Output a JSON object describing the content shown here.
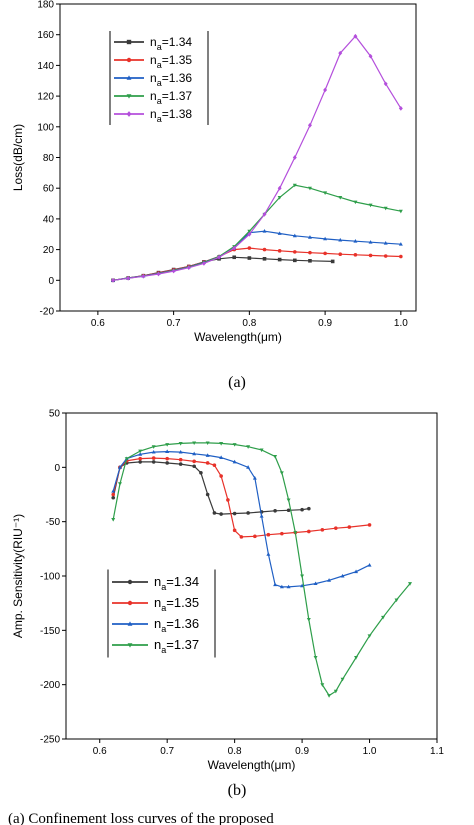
{
  "captions": {
    "a": "(a)",
    "b": "(b)"
  },
  "bottom_text": "(a) Confinement loss curves of the proposed",
  "chart_data": [
    {
      "type": "line",
      "xlabel": "Wavelength(μm)",
      "ylabel": "Loss(dB/cm)",
      "xlim": [
        0.55,
        1.02
      ],
      "ylim": [
        -20,
        180
      ],
      "xticks": [
        "0.6",
        "0.7",
        "0.8",
        "0.9",
        "1.0"
      ],
      "yticks": [
        "-20",
        "0",
        "20",
        "40",
        "60",
        "80",
        "100",
        "120",
        "140",
        "160",
        "180"
      ],
      "legend_position": "top-left",
      "series": [
        {
          "name": "n_a=1.34",
          "sub_base": "n",
          "sub": "a",
          "value": "=1.34",
          "color": "#3a3a3a",
          "marker": "square",
          "x": [
            0.62,
            0.64,
            0.66,
            0.68,
            0.7,
            0.72,
            0.74,
            0.76,
            0.78,
            0.8,
            0.82,
            0.84,
            0.86,
            0.88,
            0.91
          ],
          "y": [
            0,
            1.5,
            3,
            5,
            7,
            9,
            12,
            14,
            15,
            14.5,
            14,
            13.5,
            13,
            12.7,
            12.3
          ]
        },
        {
          "name": "n_a=1.35",
          "sub_base": "n",
          "sub": "a",
          "value": "=1.35",
          "color": "#e8322a",
          "marker": "circle",
          "x": [
            0.62,
            0.64,
            0.66,
            0.68,
            0.7,
            0.72,
            0.74,
            0.76,
            0.78,
            0.8,
            0.82,
            0.84,
            0.86,
            0.88,
            0.9,
            0.92,
            0.94,
            0.96,
            0.98,
            1.0
          ],
          "y": [
            0,
            1.5,
            3,
            4.8,
            6.8,
            9,
            12,
            15.5,
            20,
            21,
            20,
            19.2,
            18.5,
            18,
            17.5,
            17,
            16.6,
            16.2,
            15.8,
            15.5
          ]
        },
        {
          "name": "n_a=1.36",
          "sub_base": "n",
          "sub": "a",
          "value": "=1.36",
          "color": "#1f5fc4",
          "marker": "triangle-up",
          "x": [
            0.62,
            0.64,
            0.66,
            0.68,
            0.7,
            0.72,
            0.74,
            0.76,
            0.78,
            0.8,
            0.82,
            0.84,
            0.86,
            0.88,
            0.9,
            0.92,
            0.94,
            0.96,
            0.98,
            1.0
          ],
          "y": [
            0,
            1.5,
            2.8,
            4.5,
            6.5,
            8.7,
            11.8,
            15.5,
            21,
            31,
            32,
            30.5,
            29,
            28,
            27,
            26.2,
            25.5,
            24.8,
            24.2,
            23.5
          ]
        },
        {
          "name": "n_a=1.37",
          "sub_base": "n",
          "sub": "a",
          "value": "=1.37",
          "color": "#2e9e4a",
          "marker": "triangle-down",
          "x": [
            0.62,
            0.64,
            0.66,
            0.68,
            0.7,
            0.72,
            0.74,
            0.76,
            0.78,
            0.8,
            0.82,
            0.84,
            0.86,
            0.88,
            0.9,
            0.92,
            0.94,
            0.96,
            0.98,
            1.0
          ],
          "y": [
            0,
            1.4,
            2.7,
            4.3,
            6.3,
            8.5,
            11.5,
            15.5,
            22,
            32,
            43,
            54,
            62,
            60,
            57,
            54,
            51,
            49,
            47,
            45
          ]
        },
        {
          "name": "n_a=1.38",
          "sub_base": "n",
          "sub": "a",
          "value": "=1.38",
          "color": "#b44fdc",
          "marker": "diamond",
          "x": [
            0.62,
            0.64,
            0.66,
            0.68,
            0.7,
            0.72,
            0.74,
            0.76,
            0.78,
            0.8,
            0.82,
            0.84,
            0.86,
            0.88,
            0.9,
            0.92,
            0.94,
            0.96,
            0.98,
            1.0
          ],
          "y": [
            0,
            1.3,
            2.6,
            4.1,
            6,
            8.2,
            11,
            15,
            21,
            30,
            43,
            60,
            80,
            101,
            124,
            148,
            159,
            146,
            128,
            112
          ]
        }
      ]
    },
    {
      "type": "line",
      "xlabel": "Wavelength(μm)",
      "ylabel": "Amp. Sensitivity(RIU⁻¹)",
      "xlim": [
        0.55,
        1.1
      ],
      "ylim": [
        -250,
        50
      ],
      "xticks": [
        "0.6",
        "0.7",
        "0.8",
        "0.9",
        "1.0",
        "1.1"
      ],
      "yticks": [
        "-250",
        "-200",
        "-150",
        "-100",
        "-50",
        "0",
        "50"
      ],
      "legend_position": "bottom-left",
      "series": [
        {
          "name": "n_a=1.34",
          "sub_base": "n",
          "sub": "a",
          "value": "=1.34",
          "color": "#3a3a3a",
          "marker": "circle",
          "x": [
            0.62,
            0.63,
            0.64,
            0.66,
            0.68,
            0.7,
            0.72,
            0.74,
            0.75,
            0.76,
            0.77,
            0.78,
            0.8,
            0.82,
            0.84,
            0.86,
            0.88,
            0.9,
            0.91
          ],
          "y": [
            -28,
            0,
            4,
            5,
            5,
            4,
            3,
            1,
            -5,
            -25,
            -42,
            -43,
            -42.5,
            -42,
            -41,
            -40,
            -39.5,
            -39,
            -38
          ]
        },
        {
          "name": "n_a=1.35",
          "sub_base": "n",
          "sub": "a",
          "value": "=1.35",
          "color": "#e8322a",
          "marker": "circle",
          "x": [
            0.62,
            0.63,
            0.64,
            0.66,
            0.68,
            0.7,
            0.72,
            0.74,
            0.76,
            0.77,
            0.78,
            0.79,
            0.8,
            0.81,
            0.83,
            0.85,
            0.87,
            0.89,
            0.91,
            0.93,
            0.95,
            0.97,
            1.0
          ],
          "y": [
            -25,
            0,
            6,
            8,
            8.5,
            8,
            7,
            5.5,
            4,
            2,
            -8,
            -30,
            -58,
            -64,
            -63.5,
            -62,
            -61,
            -60,
            -59,
            -57.5,
            -56,
            -55,
            -53
          ]
        },
        {
          "name": "n_a=1.36",
          "sub_base": "n",
          "sub": "a",
          "value": "=1.36",
          "color": "#1f5fc4",
          "marker": "triangle-up",
          "x": [
            0.62,
            0.63,
            0.64,
            0.66,
            0.68,
            0.7,
            0.72,
            0.74,
            0.76,
            0.78,
            0.8,
            0.82,
            0.83,
            0.84,
            0.85,
            0.86,
            0.87,
            0.88,
            0.9,
            0.92,
            0.94,
            0.96,
            0.98,
            1.0
          ],
          "y": [
            -22,
            0,
            8,
            12,
            14,
            14.5,
            14,
            12.5,
            11,
            9,
            5,
            0,
            -10,
            -45,
            -80,
            -108,
            -110,
            -110,
            -109,
            -107,
            -104,
            -100,
            -96,
            -90
          ]
        },
        {
          "name": "n_a=1.37",
          "sub_base": "n",
          "sub": "a",
          "value": "=1.37",
          "color": "#2e9e4a",
          "marker": "triangle-down",
          "x": [
            0.62,
            0.63,
            0.64,
            0.66,
            0.68,
            0.7,
            0.72,
            0.74,
            0.76,
            0.78,
            0.8,
            0.82,
            0.84,
            0.86,
            0.87,
            0.88,
            0.89,
            0.9,
            0.91,
            0.92,
            0.93,
            0.94,
            0.95,
            0.96,
            0.98,
            1.0,
            1.02,
            1.04,
            1.06
          ],
          "y": [
            -48,
            -15,
            8,
            15,
            19,
            21,
            22,
            22.5,
            22.5,
            22,
            21,
            19,
            16,
            10,
            -5,
            -30,
            -60,
            -100,
            -140,
            -175,
            -200,
            -210,
            -206,
            -195,
            -175,
            -155,
            -138,
            -122,
            -107
          ]
        }
      ]
    }
  ]
}
